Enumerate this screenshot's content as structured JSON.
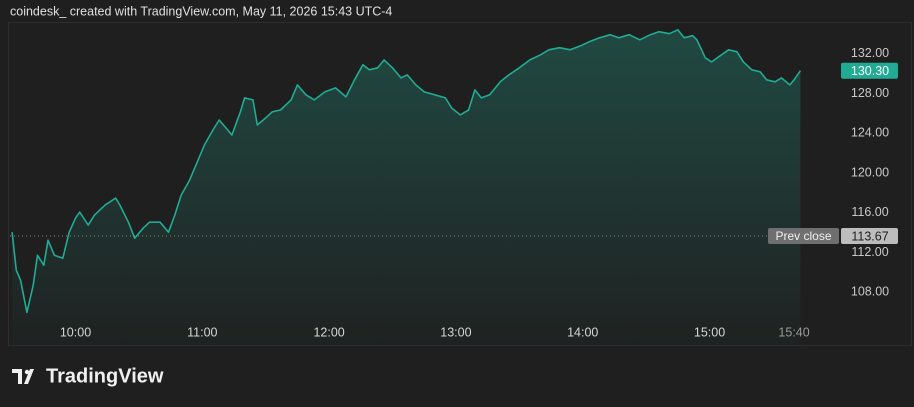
{
  "chart_data": {
    "type": "area-line",
    "title": "coindesk_ created with TradingView.com, May 11, 2026 15:43 UTC-4",
    "x": [
      "09:30",
      "09:32",
      "09:34",
      "09:37",
      "09:40",
      "09:42",
      "09:45",
      "09:47",
      "09:50",
      "09:54",
      "09:57",
      "10:00",
      "10:02",
      "10:06",
      "10:09",
      "10:14",
      "10:19",
      "10:21",
      "10:25",
      "10:28",
      "10:32",
      "10:35",
      "10:40",
      "10:44",
      "10:47",
      "10:50",
      "10:54",
      "10:58",
      "11:01",
      "11:05",
      "11:08",
      "11:12",
      "11:14",
      "11:18",
      "11:20",
      "11:24",
      "11:26",
      "11:30",
      "11:33",
      "11:37",
      "11:42",
      "11:45",
      "11:49",
      "11:53",
      "11:58",
      "12:03",
      "12:08",
      "12:12",
      "12:16",
      "12:19",
      "12:23",
      "12:26",
      "12:30",
      "12:34",
      "12:37",
      "12:41",
      "12:45",
      "12:50",
      "12:55",
      "12:58",
      "13:02",
      "13:06",
      "13:09",
      "13:12",
      "13:16",
      "13:21",
      "13:25",
      "13:30",
      "13:35",
      "13:40",
      "13:44",
      "13:49",
      "13:54",
      "13:59",
      "14:03",
      "14:08",
      "14:13",
      "14:17",
      "14:22",
      "14:27",
      "14:32",
      "14:36",
      "14:41",
      "14:45",
      "14:48",
      "14:52",
      "14:54",
      "14:58",
      "15:01",
      "15:05",
      "15:09",
      "15:13",
      "15:16",
      "15:20",
      "15:24",
      "15:27",
      "15:31",
      "15:34",
      "15:38",
      "15:40",
      "15:43"
    ],
    "series": [
      {
        "color": "#22ab94",
        "values": [
          114.05,
          110.22,
          109.21,
          105.98,
          108.71,
          111.73,
          110.72,
          113.24,
          111.73,
          111.43,
          114.05,
          115.46,
          116.07,
          114.76,
          115.77,
          116.78,
          117.48,
          116.78,
          115.06,
          113.45,
          114.45,
          115.06,
          115.06,
          114.05,
          115.77,
          117.78,
          119.29,
          121.31,
          122.82,
          124.33,
          125.34,
          124.33,
          123.83,
          126.15,
          127.56,
          127.36,
          124.84,
          125.55,
          126.15,
          126.35,
          127.36,
          128.87,
          127.87,
          127.36,
          128.17,
          128.57,
          127.66,
          129.38,
          130.89,
          130.39,
          130.59,
          131.39,
          130.59,
          129.58,
          129.88,
          128.87,
          128.17,
          127.87,
          127.56,
          126.55,
          125.85,
          126.35,
          128.37,
          127.56,
          127.87,
          129.18,
          129.88,
          130.59,
          131.39,
          131.9,
          132.4,
          132.61,
          132.4,
          132.81,
          133.21,
          133.61,
          133.92,
          133.61,
          133.92,
          133.41,
          133.92,
          134.22,
          134.02,
          134.42,
          133.61,
          133.82,
          133.41,
          131.6,
          131.19,
          131.8,
          132.4,
          132.2,
          131.19,
          130.39,
          130.18,
          129.38,
          129.18,
          129.58,
          128.87,
          129.38,
          130.3
        ]
      }
    ],
    "last_price": {
      "value": 130.3,
      "label": "130.30"
    },
    "prev_close": {
      "name": "Prev close",
      "value": 113.67
    },
    "xlim": [
      "09:29",
      "15:57"
    ],
    "xticks": [
      "10:00",
      "11:00",
      "12:00",
      "13:00",
      "14:00",
      "15:00",
      "15:40"
    ],
    "ylim": [
      102.7,
      135.2
    ],
    "yticks": [
      {
        "value": 108,
        "label": "108.00"
      },
      {
        "value": 112,
        "label": "112.00"
      },
      {
        "value": 116,
        "label": "116.00"
      },
      {
        "value": 120,
        "label": "120.00"
      },
      {
        "value": 124,
        "label": "124.00"
      },
      {
        "value": 128,
        "label": "128.00"
      },
      {
        "value": 132,
        "label": "132.00"
      }
    ],
    "grid": false
  },
  "footer": {
    "brand": "TradingView"
  }
}
